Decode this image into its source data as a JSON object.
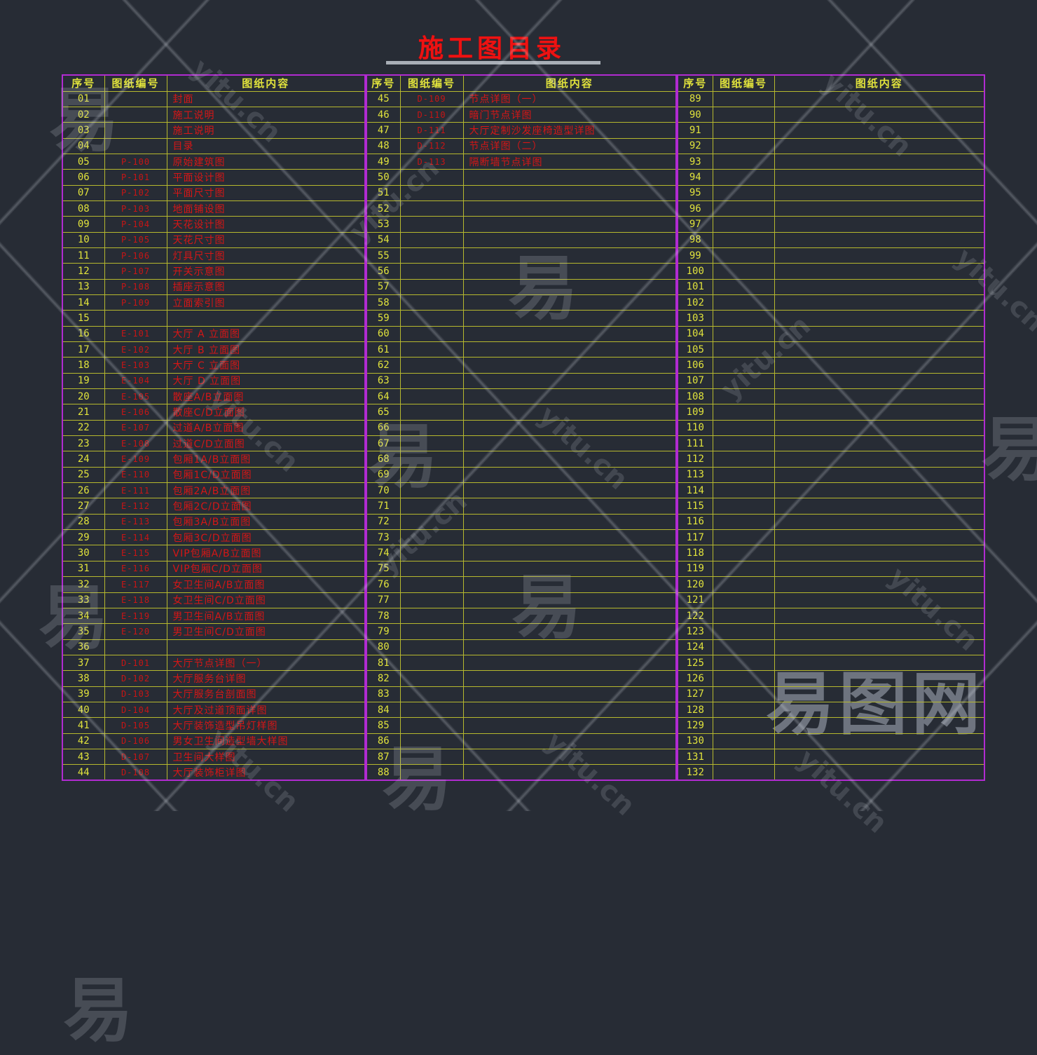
{
  "title": "施工图目录",
  "columns": [
    "序号",
    "图纸编号",
    "图纸内容"
  ],
  "tables": [
    {
      "rows": [
        [
          "01",
          "",
          "封面"
        ],
        [
          "02",
          "",
          "施工说明"
        ],
        [
          "03",
          "",
          "施工说明"
        ],
        [
          "04",
          "",
          "目录"
        ],
        [
          "05",
          "P-100",
          "原始建筑图"
        ],
        [
          "06",
          "P-101",
          "平面设计图"
        ],
        [
          "07",
          "P-102",
          "平面尺寸图"
        ],
        [
          "08",
          "P-103",
          "地面铺设图"
        ],
        [
          "09",
          "P-104",
          "天花设计图"
        ],
        [
          "10",
          "P-105",
          "天花尺寸图"
        ],
        [
          "11",
          "P-106",
          "灯具尺寸图"
        ],
        [
          "12",
          "P-107",
          "开关示意图"
        ],
        [
          "13",
          "P-108",
          "插座示意图"
        ],
        [
          "14",
          "P-109",
          "立面索引图"
        ],
        [
          "15",
          "",
          ""
        ],
        [
          "16",
          "E-101",
          "大厅 A 立面图"
        ],
        [
          "17",
          "E-102",
          "大厅 B 立面图"
        ],
        [
          "18",
          "E-103",
          "大厅 C 立面图"
        ],
        [
          "19",
          "E-104",
          "大厅 D 立面图"
        ],
        [
          "20",
          "E-105",
          "散座A/B立面图"
        ],
        [
          "21",
          "E-106",
          "散座C/D立面图"
        ],
        [
          "22",
          "E-107",
          "过道A/B立面图"
        ],
        [
          "23",
          "E-108",
          "过道C/D立面图"
        ],
        [
          "24",
          "E-109",
          "包厢1A/B立面图"
        ],
        [
          "25",
          "E-110",
          "包厢1C/D立面图"
        ],
        [
          "26",
          "E-111",
          "包厢2A/B立面图"
        ],
        [
          "27",
          "E-112",
          "包厢2C/D立面图"
        ],
        [
          "28",
          "E-113",
          "包厢3A/B立面图"
        ],
        [
          "29",
          "E-114",
          "包厢3C/D立面图"
        ],
        [
          "30",
          "E-115",
          "VIP包厢A/B立面图"
        ],
        [
          "31",
          "E-116",
          "VIP包厢C/D立面图"
        ],
        [
          "32",
          "E-117",
          "女卫生间A/B立面图"
        ],
        [
          "33",
          "E-118",
          "女卫生间C/D立面图"
        ],
        [
          "34",
          "E-119",
          "男卫生间A/B立面图"
        ],
        [
          "35",
          "E-120",
          "男卫生间C/D立面图"
        ],
        [
          "36",
          "",
          ""
        ],
        [
          "37",
          "D-101",
          "大厅节点详图（一）"
        ],
        [
          "38",
          "D-102",
          "大厅服务台详图"
        ],
        [
          "39",
          "D-103",
          "大厅服务台剖面图"
        ],
        [
          "40",
          "D-104",
          "大厅及过道顶面详图"
        ],
        [
          "41",
          "D-105",
          "大厅装饰造型吊灯样图"
        ],
        [
          "42",
          "D-106",
          "男女卫生间造型墙大样图"
        ],
        [
          "43",
          "D-107",
          "卫生间大样图"
        ],
        [
          "44",
          "D-108",
          "大厅装饰柜详图"
        ]
      ]
    },
    {
      "rows": [
        [
          "45",
          "D-109",
          "节点详图（一）"
        ],
        [
          "46",
          "D-110",
          "暗门节点详图"
        ],
        [
          "47",
          "D-111",
          "大厅定制沙发座椅造型详图"
        ],
        [
          "48",
          "D-112",
          "节点详图（二）"
        ],
        [
          "49",
          "D-113",
          "隔断墙节点详图"
        ],
        [
          "50",
          "",
          ""
        ],
        [
          "51",
          "",
          ""
        ],
        [
          "52",
          "",
          ""
        ],
        [
          "53",
          "",
          ""
        ],
        [
          "54",
          "",
          ""
        ],
        [
          "55",
          "",
          ""
        ],
        [
          "56",
          "",
          ""
        ],
        [
          "57",
          "",
          ""
        ],
        [
          "58",
          "",
          ""
        ],
        [
          "59",
          "",
          ""
        ],
        [
          "60",
          "",
          ""
        ],
        [
          "61",
          "",
          ""
        ],
        [
          "62",
          "",
          ""
        ],
        [
          "63",
          "",
          ""
        ],
        [
          "64",
          "",
          ""
        ],
        [
          "65",
          "",
          ""
        ],
        [
          "66",
          "",
          ""
        ],
        [
          "67",
          "",
          ""
        ],
        [
          "68",
          "",
          ""
        ],
        [
          "69",
          "",
          ""
        ],
        [
          "70",
          "",
          ""
        ],
        [
          "71",
          "",
          ""
        ],
        [
          "72",
          "",
          ""
        ],
        [
          "73",
          "",
          ""
        ],
        [
          "74",
          "",
          ""
        ],
        [
          "75",
          "",
          ""
        ],
        [
          "76",
          "",
          ""
        ],
        [
          "77",
          "",
          ""
        ],
        [
          "78",
          "",
          ""
        ],
        [
          "79",
          "",
          ""
        ],
        [
          "80",
          "",
          ""
        ],
        [
          "81",
          "",
          ""
        ],
        [
          "82",
          "",
          ""
        ],
        [
          "83",
          "",
          ""
        ],
        [
          "84",
          "",
          ""
        ],
        [
          "85",
          "",
          ""
        ],
        [
          "86",
          "",
          ""
        ],
        [
          "87",
          "",
          ""
        ],
        [
          "88",
          "",
          ""
        ]
      ]
    },
    {
      "rows": [
        [
          "89",
          "",
          ""
        ],
        [
          "90",
          "",
          ""
        ],
        [
          "91",
          "",
          ""
        ],
        [
          "92",
          "",
          ""
        ],
        [
          "93",
          "",
          ""
        ],
        [
          "94",
          "",
          ""
        ],
        [
          "95",
          "",
          ""
        ],
        [
          "96",
          "",
          ""
        ],
        [
          "97",
          "",
          ""
        ],
        [
          "98",
          "",
          ""
        ],
        [
          "99",
          "",
          ""
        ],
        [
          "100",
          "",
          ""
        ],
        [
          "101",
          "",
          ""
        ],
        [
          "102",
          "",
          ""
        ],
        [
          "103",
          "",
          ""
        ],
        [
          "104",
          "",
          ""
        ],
        [
          "105",
          "",
          ""
        ],
        [
          "106",
          "",
          ""
        ],
        [
          "107",
          "",
          ""
        ],
        [
          "108",
          "",
          ""
        ],
        [
          "109",
          "",
          ""
        ],
        [
          "110",
          "",
          ""
        ],
        [
          "111",
          "",
          ""
        ],
        [
          "112",
          "",
          ""
        ],
        [
          "113",
          "",
          ""
        ],
        [
          "114",
          "",
          ""
        ],
        [
          "115",
          "",
          ""
        ],
        [
          "116",
          "",
          ""
        ],
        [
          "117",
          "",
          ""
        ],
        [
          "118",
          "",
          ""
        ],
        [
          "119",
          "",
          ""
        ],
        [
          "120",
          "",
          ""
        ],
        [
          "121",
          "",
          ""
        ],
        [
          "122",
          "",
          ""
        ],
        [
          "123",
          "",
          ""
        ],
        [
          "124",
          "",
          ""
        ],
        [
          "125",
          "",
          ""
        ],
        [
          "126",
          "",
          ""
        ],
        [
          "127",
          "",
          ""
        ],
        [
          "128",
          "",
          ""
        ],
        [
          "129",
          "",
          ""
        ],
        [
          "130",
          "",
          ""
        ],
        [
          "131",
          "",
          ""
        ],
        [
          "132",
          "",
          ""
        ]
      ]
    }
  ],
  "watermark": {
    "logo": "易图网",
    "site": "yitu.cn",
    "char": "易"
  },
  "colors": {
    "background": "#272c35",
    "border_magenta": "#b12bd1",
    "grid_yellow": "#b6b82e",
    "text_yellow": "#e0e23c",
    "text_red": "#d61616",
    "title_red": "#ed1212",
    "underline_gray": "#a8aeb6"
  }
}
